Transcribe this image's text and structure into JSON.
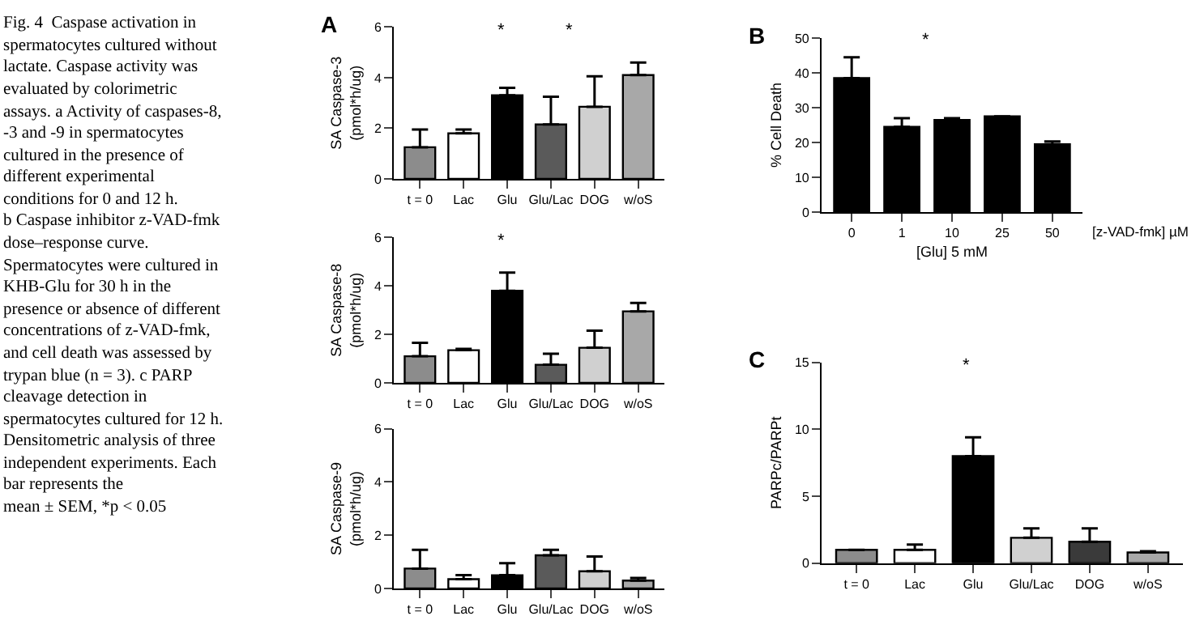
{
  "chart_data": [
    {
      "type": "other",
      "annotations": [
        "Fig. 4  Caspase activation in",
        "spermatocytes cultured without",
        "lactate. Caspase activity was",
        "evaluated by colorimetric",
        "assays. a Activity of caspases-8,",
        "-3 and -9 in spermatocytes",
        "cultured in the presence of",
        "different experimental",
        "conditions for 0 and 12 h.",
        "b Caspase inhibitor z-VAD-fmk",
        "dose–response curve.",
        "Spermatocytes were cultured in",
        "KHB-Glu for 30 h in the",
        "presence or absence of different",
        "concentrations of z-VAD-fmk,",
        "and cell death was assessed by",
        "trypan blue (n = 3). c PARP",
        "cleavage detection in",
        "spermatocytes cultured for 12 h.",
        "Densitometric analysis of three",
        "independent experiments. Each",
        "bar represents the",
        "mean ± SEM, *p < 0.05"
      ]
    },
    {
      "type": "bar",
      "title": "A",
      "ylabel": "SA Caspase-3\n(pmol*h/ug)",
      "categories": [
        "t = 0",
        "Lac",
        "Glu",
        "Glu/Lac",
        "DOG",
        "w/oS"
      ],
      "values": [
        1.25,
        1.8,
        3.3,
        2.15,
        2.85,
        4.1
      ],
      "colors": [
        "#8c8c8c",
        "#ffffff",
        "#000000",
        "#5a5a5a",
        "#d0d0d0",
        "#a8a8a8"
      ],
      "errors": [
        [
          1.25,
          1.95
        ],
        [
          1.8,
          1.95
        ],
        [
          3.3,
          3.6
        ],
        [
          2.15,
          3.25
        ],
        [
          2.85,
          4.05
        ],
        [
          4.1,
          4.6
        ]
      ],
      "ylim": [
        0,
        6
      ],
      "yticks": [
        0,
        2,
        4,
        6
      ],
      "annotations": [
        "*",
        "*"
      ]
    },
    {
      "type": "bar",
      "ylabel": "SA Caspase-8\n(pmol*h/ug)",
      "categories": [
        "t = 0",
        "Lac",
        "Glu",
        "Glu/Lac",
        "DOG",
        "w/oS"
      ],
      "values": [
        1.1,
        1.35,
        3.8,
        0.75,
        1.45,
        2.95
      ],
      "colors": [
        "#8c8c8c",
        "#ffffff",
        "#000000",
        "#5a5a5a",
        "#d0d0d0",
        "#a8a8a8"
      ],
      "errors": [
        [
          1.1,
          1.65
        ],
        [
          1.35,
          1.4
        ],
        [
          3.8,
          4.55
        ],
        [
          0.75,
          1.2
        ],
        [
          1.45,
          2.15
        ],
        [
          2.95,
          3.3
        ]
      ],
      "ylim": [
        0,
        6
      ],
      "yticks": [
        0,
        2,
        4,
        6
      ],
      "annotations": [
        "*"
      ]
    },
    {
      "type": "bar",
      "ylabel": "SA Caspase-9\n(pmol*h/ug)",
      "categories": [
        "t = 0",
        "Lac",
        "Glu",
        "Glu/Lac",
        "DOG",
        "w/oS"
      ],
      "values": [
        0.75,
        0.35,
        0.5,
        1.25,
        0.65,
        0.3
      ],
      "colors": [
        "#8c8c8c",
        "#ffffff",
        "#000000",
        "#5a5a5a",
        "#d0d0d0",
        "#a8a8a8"
      ],
      "errors": [
        [
          0.75,
          1.45
        ],
        [
          0.35,
          0.5
        ],
        [
          0.5,
          0.95
        ],
        [
          1.25,
          1.45
        ],
        [
          0.65,
          1.2
        ],
        [
          0.3,
          0.4
        ]
      ],
      "ylim": [
        0,
        6
      ],
      "yticks": [
        0,
        2,
        4,
        6
      ]
    },
    {
      "type": "bar",
      "title": "B",
      "ylabel": "% Cell Death",
      "xlabel": "[Glu] 5 mM",
      "categories": [
        "0",
        "1",
        "10",
        "25",
        "50"
      ],
      "values": [
        38.5,
        24.5,
        26.5,
        27.5,
        19.5
      ],
      "color": "#000000",
      "errors": [
        [
          38.5,
          44.5
        ],
        [
          24.5,
          27
        ],
        [
          26.5,
          27
        ],
        null,
        [
          19.5,
          20.3
        ]
      ],
      "ylim": [
        0,
        50
      ],
      "yticks": [
        0,
        10,
        20,
        30,
        40,
        50
      ],
      "annotations": [
        "*",
        "[z-VAD-fmk] µM"
      ]
    },
    {
      "type": "bar",
      "title": "C",
      "ylabel": "PARPc/PARPt",
      "categories": [
        "t = 0",
        "Lac",
        "Glu",
        "Glu/Lac",
        "DOG",
        "w/oS"
      ],
      "values": [
        1.0,
        1.0,
        8.0,
        1.9,
        1.6,
        0.8
      ],
      "colors": [
        "#8c8c8c",
        "#ffffff",
        "#000000",
        "#d0d0d0",
        "#3a3a3a",
        "#a8a8a8"
      ],
      "errors": [
        null,
        [
          1.0,
          1.4
        ],
        [
          8.0,
          9.4
        ],
        [
          1.9,
          2.6
        ],
        [
          1.6,
          2.6
        ],
        [
          0.8,
          0.9
        ]
      ],
      "ylim": [
        0,
        15
      ],
      "yticks": [
        0,
        5,
        10,
        15
      ],
      "annotations": [
        "*"
      ]
    }
  ]
}
